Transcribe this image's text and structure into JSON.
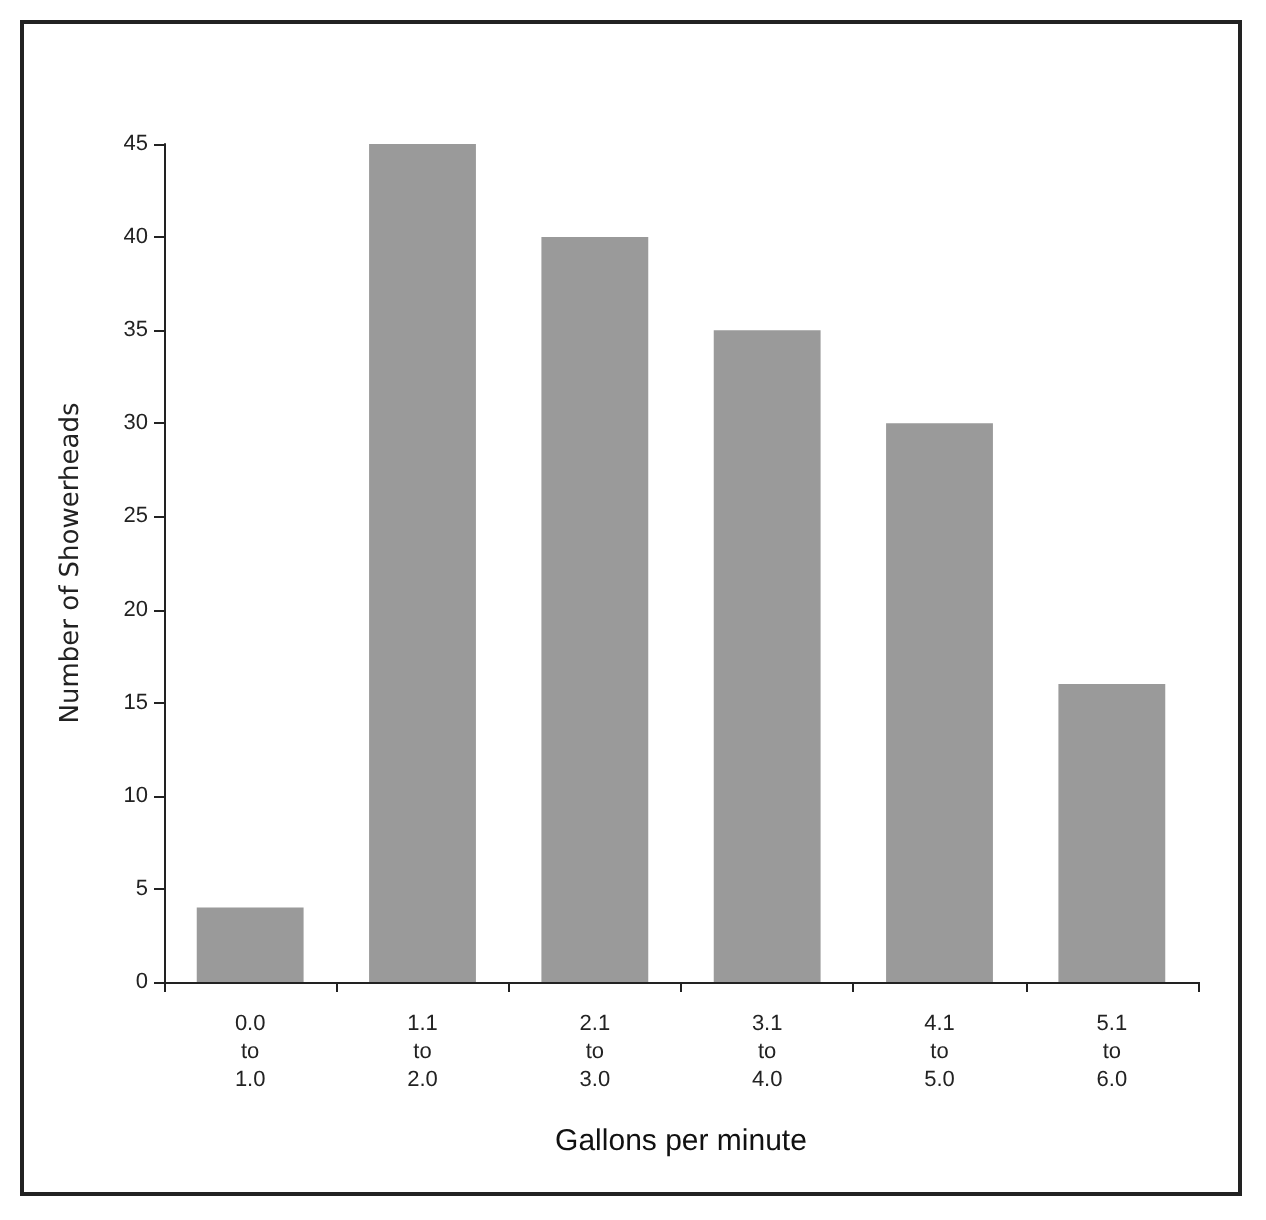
{
  "chart_data": {
    "type": "bar",
    "xlabel": "Gallons per minute",
    "ylabel": "Number of Showerheads",
    "categories": [
      "0.0\nto\n1.0",
      "1.1\nto\n2.0",
      "2.1\nto\n3.0",
      "3.1\nto\n4.0",
      "4.1\nto\n5.0",
      "5.1\nto\n6.0"
    ],
    "values": [
      4,
      45,
      40,
      35,
      30,
      16
    ],
    "color": "#9a9a9a",
    "ylim": [
      0,
      45
    ],
    "yticks": [
      0,
      5,
      10,
      15,
      20,
      25,
      30,
      35,
      40,
      45
    ],
    "grid": false
  }
}
